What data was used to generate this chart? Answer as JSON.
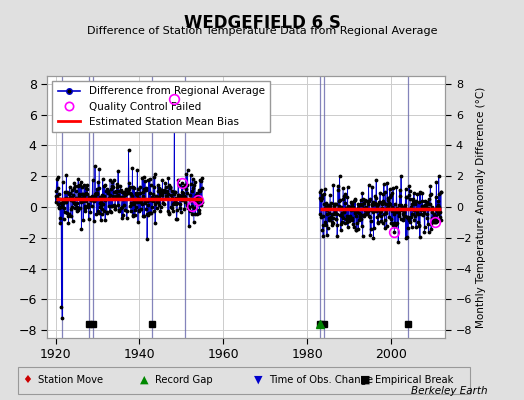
{
  "title": "WEDGEFIELD 6 S",
  "subtitle": "Difference of Station Temperature Data from Regional Average",
  "ylabel_right": "Monthly Temperature Anomaly Difference (°C)",
  "credit": "Berkeley Earth",
  "xlim": [
    1918,
    2013
  ],
  "ylim": [
    -8.5,
    8.5
  ],
  "yticks": [
    -8,
    -6,
    -4,
    -2,
    0,
    2,
    4,
    6,
    8
  ],
  "xticks": [
    1920,
    1940,
    1960,
    1980,
    2000
  ],
  "segment1_start": 1920,
  "segment1_end": 1955,
  "segment2_start": 1983,
  "segment2_end": 2012,
  "bias1": 0.55,
  "bias2": -0.15,
  "vertical_lines": [
    1921.5,
    1928,
    1929,
    1943,
    1951,
    1983,
    1984,
    2004
  ],
  "empirical_breaks": [
    1928,
    1929,
    1943,
    1983,
    1984,
    2004
  ],
  "record_gaps": [
    1983
  ],
  "bg_color": "#e0e0e0",
  "plot_bg_color": "#ffffff",
  "line_color": "#0000cc",
  "dot_color": "#000000",
  "bias_color": "#ff0000",
  "qc_color": "#ff00ff",
  "grid_color": "#cccccc",
  "seed": 42
}
